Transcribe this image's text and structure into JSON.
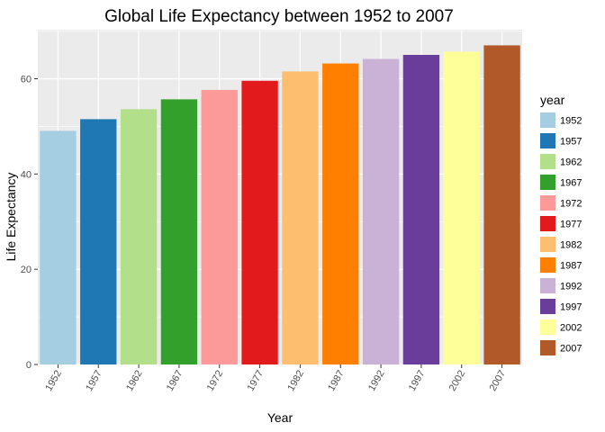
{
  "chart_data": {
    "type": "bar",
    "title": "Global Life Expectancy between 1952 to 2007",
    "xlabel": "Year",
    "ylabel": "Life Expectancy",
    "categories": [
      "1952",
      "1957",
      "1962",
      "1967",
      "1972",
      "1977",
      "1982",
      "1987",
      "1992",
      "1997",
      "2002",
      "2007"
    ],
    "values": [
      49.06,
      51.51,
      53.61,
      55.68,
      57.65,
      59.57,
      61.53,
      63.21,
      64.16,
      65.01,
      65.69,
      67.01
    ],
    "colors": [
      "#A6CEE3",
      "#1F78B4",
      "#B2DF8A",
      "#33A02C",
      "#FB9A99",
      "#E31A1C",
      "#FDBF6F",
      "#FF7F00",
      "#CAB2D6",
      "#6A3D9A",
      "#FFFF99",
      "#B15928"
    ],
    "ylim": [
      0,
      70.3
    ],
    "yticks": [
      0,
      20,
      40,
      60
    ],
    "grid": true,
    "legend": {
      "title": "year",
      "placement": "right",
      "entries": [
        "1952",
        "1957",
        "1962",
        "1967",
        "1972",
        "1977",
        "1982",
        "1987",
        "1992",
        "1997",
        "2002",
        "2007"
      ]
    },
    "panel_background": "#EBEBEB",
    "grid_color": "#FFFFFF"
  }
}
